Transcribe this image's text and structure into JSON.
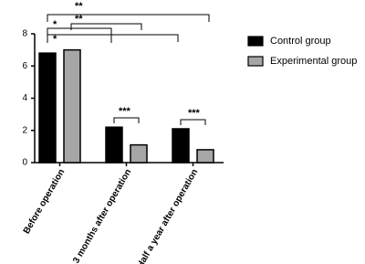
{
  "chart_data": {
    "type": "bar",
    "categories": [
      "Before operation",
      "3 months after operation",
      "Half a year after operation"
    ],
    "series": [
      {
        "name": "Control group",
        "color": "#000000",
        "values": [
          6.8,
          2.2,
          2.1
        ]
      },
      {
        "name": "Experimental group",
        "color": "#a6a6a6",
        "values": [
          7.0,
          1.1,
          0.8
        ]
      }
    ],
    "ylim": [
      0,
      8
    ],
    "yticks": [
      0,
      2,
      4,
      6,
      8
    ],
    "annotations": [
      "**",
      "**",
      "*",
      "*",
      "***",
      "***"
    ]
  }
}
